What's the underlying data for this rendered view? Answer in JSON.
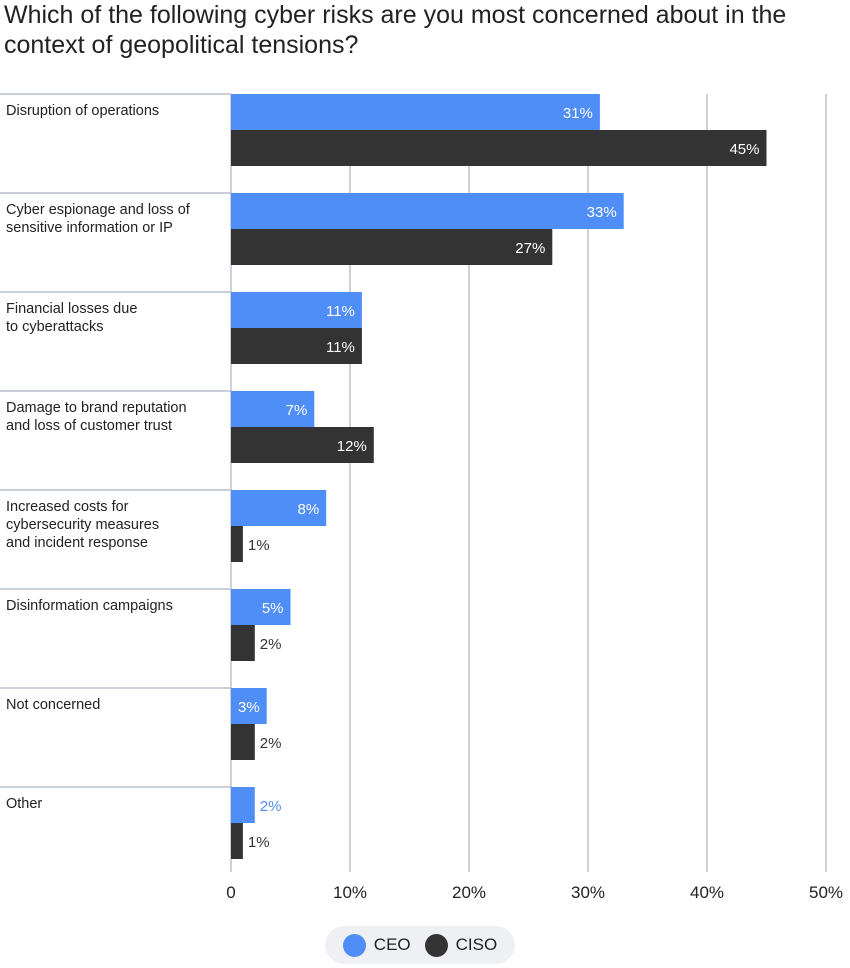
{
  "chart_data": {
    "type": "bar",
    "orientation": "horizontal",
    "title": "Which of the following cyber risks are you most concerned about in the context of geopolitical tensions?",
    "categories": [
      "Disruption of operations",
      "Cyber espionage and loss of\nsensitive information or IP",
      "Financial losses due\nto cyberattacks",
      "Damage to brand reputation\nand loss of customer trust",
      "Increased costs for\ncybersecurity measures\nand incident response",
      "Disinformation campaigns",
      "Not concerned",
      "Other"
    ],
    "series": [
      {
        "name": "CEO",
        "color": "#4f8ef7",
        "values": [
          31,
          33,
          11,
          7,
          8,
          5,
          3,
          2
        ]
      },
      {
        "name": "CISO",
        "color": "#333333",
        "values": [
          45,
          27,
          11,
          12,
          1,
          2,
          2,
          1
        ]
      }
    ],
    "xlim": [
      0,
      50
    ],
    "xticks": [
      0,
      10,
      20,
      30,
      40,
      50
    ],
    "xtick_labels": [
      "0",
      "10%",
      "20%",
      "30%",
      "40%",
      "50%"
    ],
    "value_suffix": "%",
    "grid": "vertical",
    "legend": "bottom-center"
  }
}
